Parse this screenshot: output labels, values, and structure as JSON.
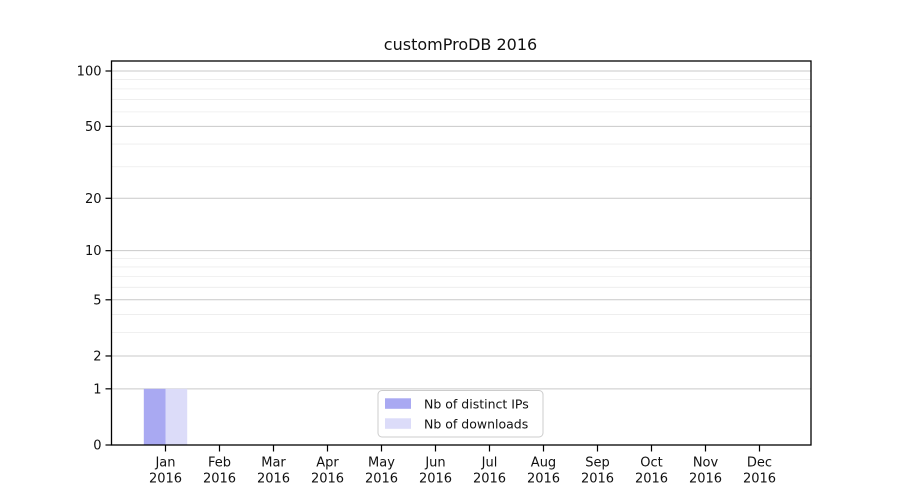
{
  "chart_data": {
    "type": "bar",
    "title": "customProDB 2016",
    "categories": [
      "Jan",
      "Feb",
      "Mar",
      "Apr",
      "May",
      "Jun",
      "Jul",
      "Aug",
      "Sep",
      "Oct",
      "Nov",
      "Dec"
    ],
    "category_year": "2016",
    "series": [
      {
        "name": "Nb of distinct IPs",
        "color": "#a9a9f2",
        "values": [
          1,
          0,
          0,
          0,
          0,
          0,
          0,
          0,
          0,
          0,
          0,
          0
        ]
      },
      {
        "name": "Nb of downloads",
        "color": "#dcdcf9",
        "values": [
          1,
          0,
          0,
          0,
          0,
          0,
          0,
          0,
          0,
          0,
          0,
          0
        ]
      }
    ],
    "xlabel": "",
    "ylabel": "",
    "y_scale": "log1p",
    "y_ticks": [
      0,
      1,
      2,
      5,
      10,
      20,
      50,
      100
    ],
    "y_minor_gridlines": [
      3,
      4,
      6,
      7,
      8,
      9,
      30,
      40,
      60,
      70,
      80,
      90
    ],
    "ylim": [
      0,
      111
    ],
    "grid": "horizontal",
    "legend_position": "bottom-center-inside",
    "colors": {
      "axis": "#000000",
      "major_grid": "#c9c9c9",
      "minor_grid": "#ececec",
      "legend_border": "#cccccc",
      "legend_bg": "#ffffff",
      "text": "#111111"
    }
  }
}
